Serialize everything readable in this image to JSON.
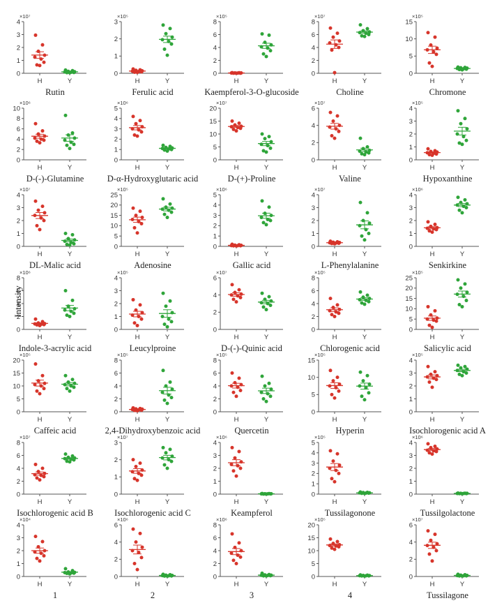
{
  "figure": {
    "ylabel": "Intensity",
    "group_labels": [
      "H",
      "Y"
    ],
    "colors": {
      "H": "#d7352b",
      "Y": "#2fa53a",
      "axis": "#555555"
    }
  },
  "chart_data": [
    {
      "type": "scatter",
      "title": "Rutin",
      "exp": "×10⁷",
      "ylim": [
        0,
        4
      ],
      "yticks": [
        0,
        1,
        2,
        3,
        4
      ],
      "H": [
        2.95,
        2.2,
        1.7,
        1.4,
        1.25,
        1.1,
        0.85,
        0.65,
        0.6
      ],
      "Y": [
        0.25,
        0.2,
        0.15,
        0.12,
        0.1,
        0.08,
        0.06,
        0.05,
        0.04
      ]
    },
    {
      "type": "scatter",
      "title": "Ferulic acid",
      "exp": "×10⁵",
      "ylim": [
        0,
        3
      ],
      "yticks": [
        0,
        1,
        2,
        3
      ],
      "H": [
        0.25,
        0.2,
        0.17,
        0.14,
        0.12,
        0.1,
        0.08,
        0.06,
        0.05
      ],
      "Y": [
        2.8,
        2.6,
        2.3,
        2.1,
        1.95,
        1.85,
        1.7,
        1.4,
        1.05
      ]
    },
    {
      "type": "scatter",
      "title": "Kaempferol-3-O-glucoside",
      "exp": "×10⁵",
      "ylim": [
        0,
        8
      ],
      "yticks": [
        0,
        2,
        4,
        6,
        8
      ],
      "H": [
        0.1,
        0.08,
        0.06,
        0.05,
        0.04,
        0.03,
        0.02,
        0.02,
        0.01
      ],
      "Y": [
        6.1,
        5.9,
        4.8,
        4.4,
        4.1,
        3.9,
        3.5,
        3.0,
        2.6
      ]
    },
    {
      "type": "scatter",
      "title": "Choline",
      "exp": "×10⁷",
      "ylim": [
        0,
        8
      ],
      "yticks": [
        0,
        2,
        4,
        6,
        8
      ],
      "H": [
        7.0,
        6.2,
        5.6,
        5.0,
        4.7,
        4.4,
        4.0,
        3.6,
        0.1
      ],
      "Y": [
        7.5,
        6.9,
        6.6,
        6.4,
        6.3,
        6.2,
        6.0,
        5.8,
        5.7
      ]
    },
    {
      "type": "scatter",
      "title": "Chromone",
      "exp": "×10⁵",
      "ylim": [
        0,
        15
      ],
      "yticks": [
        0,
        5,
        10,
        15
      ],
      "H": [
        11.8,
        10.5,
        8.2,
        7.3,
        6.8,
        6.2,
        5.5,
        3.0,
        2.0
      ],
      "Y": [
        1.8,
        1.7,
        1.6,
        1.5,
        1.4,
        1.3,
        1.2,
        1.1,
        1.0
      ]
    },
    {
      "type": "scatter",
      "title": "D-(-)-Glutamine",
      "exp": "×10⁶",
      "ylim": [
        0,
        10
      ],
      "yticks": [
        0,
        2,
        4,
        6,
        8,
        10
      ],
      "H": [
        7.0,
        5.6,
        5.0,
        4.6,
        4.2,
        4.0,
        3.8,
        3.6,
        3.3
      ],
      "Y": [
        8.6,
        5.2,
        4.8,
        4.2,
        3.8,
        3.4,
        3.0,
        2.8,
        2.2
      ]
    },
    {
      "type": "scatter",
      "title": "D-α-Hydroxyglutaric acid",
      "exp": "×10⁶",
      "ylim": [
        0,
        5
      ],
      "yticks": [
        0,
        1,
        2,
        3,
        4,
        5
      ],
      "H": [
        4.2,
        3.8,
        3.5,
        3.2,
        3.0,
        2.9,
        2.7,
        2.4,
        2.3
      ],
      "Y": [
        1.4,
        1.3,
        1.2,
        1.15,
        1.1,
        1.05,
        1.0,
        0.95,
        0.85
      ]
    },
    {
      "type": "scatter",
      "title": "D-(+)-Proline",
      "exp": "×10⁷",
      "ylim": [
        0,
        20
      ],
      "yticks": [
        0,
        5,
        10,
        15,
        20
      ],
      "H": [
        15.0,
        14.2,
        13.5,
        13.0,
        12.8,
        12.5,
        12.2,
        11.8,
        11.2
      ],
      "Y": [
        10.0,
        9.0,
        8.2,
        7.0,
        6.0,
        5.5,
        4.5,
        3.5,
        3.0
      ]
    },
    {
      "type": "scatter",
      "title": "Valine",
      "exp": "×10⁷",
      "ylim": [
        0,
        6
      ],
      "yticks": [
        0,
        2,
        4,
        6
      ],
      "H": [
        5.5,
        5.1,
        4.5,
        4.0,
        3.8,
        3.6,
        3.3,
        2.8,
        2.5
      ],
      "Y": [
        2.5,
        1.5,
        1.3,
        1.1,
        1.0,
        0.9,
        0.8,
        0.7,
        0.6
      ]
    },
    {
      "type": "scatter",
      "title": "Hypoxanthine",
      "exp": "×10⁵",
      "ylim": [
        0,
        4
      ],
      "yticks": [
        0,
        1,
        2,
        3,
        4
      ],
      "H": [
        0.85,
        0.7,
        0.65,
        0.6,
        0.55,
        0.5,
        0.45,
        0.4,
        0.35
      ],
      "Y": [
        3.8,
        3.2,
        2.8,
        2.4,
        2.0,
        1.8,
        1.5,
        1.3,
        1.2
      ]
    },
    {
      "type": "scatter",
      "title": "DL-Malic acid",
      "exp": "×10⁷",
      "ylim": [
        0,
        4
      ],
      "yticks": [
        0,
        1,
        2,
        3,
        4
      ],
      "H": [
        3.5,
        3.1,
        2.8,
        2.6,
        2.4,
        2.2,
        2.0,
        1.6,
        1.3
      ],
      "Y": [
        1.0,
        0.9,
        0.6,
        0.5,
        0.4,
        0.3,
        0.2,
        0.15,
        0.1
      ]
    },
    {
      "type": "scatter",
      "title": "Adenosine",
      "exp": "×10⁵",
      "ylim": [
        0,
        25
      ],
      "yticks": [
        0,
        5,
        10,
        15,
        20,
        25
      ],
      "H": [
        18.5,
        17.0,
        15.0,
        14.0,
        13.0,
        12.0,
        11.0,
        9.0,
        6.5
      ],
      "Y": [
        23.0,
        20.5,
        19.0,
        18.5,
        18.0,
        17.5,
        16.5,
        15.5,
        14.0
      ]
    },
    {
      "type": "scatter",
      "title": "Gallic acid",
      "exp": "×10⁶",
      "ylim": [
        0,
        5
      ],
      "yticks": [
        0,
        1,
        2,
        3,
        4,
        5
      ],
      "H": [
        0.2,
        0.15,
        0.12,
        0.1,
        0.08,
        0.07,
        0.06,
        0.05,
        0.04
      ],
      "Y": [
        4.4,
        3.8,
        3.2,
        3.0,
        2.8,
        2.6,
        2.5,
        2.3,
        2.1
      ]
    },
    {
      "type": "scatter",
      "title": "L-Phenylalanine",
      "exp": "×10⁷",
      "ylim": [
        0,
        4
      ],
      "yticks": [
        0,
        1,
        2,
        3,
        4
      ],
      "H": [
        0.4,
        0.35,
        0.32,
        0.3,
        0.28,
        0.26,
        0.24,
        0.22,
        0.2
      ],
      "Y": [
        3.4,
        2.6,
        2.0,
        1.8,
        1.6,
        1.3,
        1.0,
        0.8,
        0.5
      ]
    },
    {
      "type": "scatter",
      "title": "Senkirkine",
      "exp": "×10⁶",
      "ylim": [
        0,
        4
      ],
      "yticks": [
        0,
        1,
        2,
        3,
        4
      ],
      "H": [
        1.9,
        1.7,
        1.55,
        1.45,
        1.4,
        1.35,
        1.3,
        1.2,
        1.1
      ],
      "Y": [
        3.8,
        3.6,
        3.4,
        3.3,
        3.2,
        3.1,
        3.0,
        2.8,
        2.6
      ]
    },
    {
      "type": "scatter",
      "title": "Indole-3-acrylic acid",
      "exp": "×10⁶",
      "ylim": [
        0,
        8
      ],
      "yticks": [
        0,
        2,
        4,
        6,
        8
      ],
      "H": [
        1.6,
        1.2,
        1.0,
        0.9,
        0.85,
        0.8,
        0.75,
        0.7,
        0.6
      ],
      "Y": [
        6.0,
        4.5,
        3.6,
        3.2,
        3.0,
        2.8,
        2.5,
        2.2,
        2.0
      ]
    },
    {
      "type": "scatter",
      "title": "Leucylproine",
      "exp": "×10⁵",
      "ylim": [
        0,
        4
      ],
      "yticks": [
        0,
        1,
        2,
        3,
        4
      ],
      "H": [
        2.3,
        1.9,
        1.5,
        1.3,
        1.1,
        1.0,
        0.8,
        0.5,
        0.3
      ],
      "Y": [
        2.8,
        2.2,
        1.8,
        1.3,
        1.0,
        0.8,
        0.6,
        0.4,
        0.2
      ]
    },
    {
      "type": "scatter",
      "title": "D-(-)-Quinic acid",
      "exp": "×10⁷",
      "ylim": [
        0,
        6
      ],
      "yticks": [
        0,
        2,
        4,
        6
      ],
      "H": [
        5.2,
        4.6,
        4.3,
        4.1,
        4.0,
        3.9,
        3.7,
        3.5,
        3.2
      ],
      "Y": [
        4.2,
        3.8,
        3.5,
        3.3,
        3.1,
        3.0,
        2.8,
        2.6,
        2.3
      ]
    },
    {
      "type": "scatter",
      "title": "Chlorogenic acid",
      "exp": "×10⁵",
      "ylim": [
        0,
        8
      ],
      "yticks": [
        0,
        2,
        4,
        6,
        8
      ],
      "H": [
        4.8,
        3.8,
        3.4,
        3.1,
        2.9,
        2.7,
        2.5,
        2.3,
        2.0
      ],
      "Y": [
        5.8,
        5.3,
        5.0,
        4.8,
        4.6,
        4.5,
        4.3,
        4.1,
        3.9
      ]
    },
    {
      "type": "scatter",
      "title": "Salicylic acid",
      "exp": "×10⁵",
      "ylim": [
        0,
        25
      ],
      "yticks": [
        0,
        5,
        10,
        15,
        20,
        25
      ],
      "H": [
        11.0,
        9.0,
        7.0,
        5.5,
        5.0,
        4.5,
        4.0,
        2.0,
        1.0
      ],
      "Y": [
        24.0,
        22.0,
        20.0,
        18.0,
        17.0,
        16.0,
        14.0,
        12.0,
        11.0
      ]
    },
    {
      "type": "scatter",
      "title": "Caffeic acid",
      "exp": "×10⁵",
      "ylim": [
        0,
        20
      ],
      "yticks": [
        0,
        5,
        10,
        15,
        20
      ],
      "H": [
        18.5,
        14.0,
        12.0,
        11.0,
        10.5,
        10.0,
        9.0,
        8.0,
        7.0
      ],
      "Y": [
        14.0,
        12.5,
        11.5,
        11.0,
        10.5,
        10.0,
        9.5,
        9.0,
        8.0
      ]
    },
    {
      "type": "scatter",
      "title": "2,4-Dihydroxybenzoic acid",
      "exp": "×10⁵",
      "ylim": [
        0,
        8
      ],
      "yticks": [
        0,
        2,
        4,
        6,
        8
      ],
      "H": [
        0.6,
        0.5,
        0.45,
        0.4,
        0.35,
        0.3,
        0.25,
        0.2,
        0.15
      ],
      "Y": [
        6.4,
        4.6,
        4.0,
        3.5,
        3.0,
        2.6,
        2.2,
        1.8,
        1.3
      ]
    },
    {
      "type": "scatter",
      "title": "Quercetin",
      "exp": "×10⁵",
      "ylim": [
        0,
        8
      ],
      "yticks": [
        0,
        2,
        4,
        6,
        8
      ],
      "H": [
        6.0,
        5.2,
        4.5,
        4.2,
        4.0,
        3.8,
        3.3,
        3.0,
        2.4
      ],
      "Y": [
        5.5,
        4.4,
        4.0,
        3.5,
        3.0,
        2.8,
        2.4,
        2.0,
        1.6
      ]
    },
    {
      "type": "scatter",
      "title": "Hyperin",
      "exp": "×10⁵",
      "ylim": [
        0,
        15
      ],
      "yticks": [
        0,
        5,
        10,
        15
      ],
      "H": [
        12.0,
        10.0,
        9.0,
        8.0,
        7.5,
        7.0,
        6.0,
        5.0,
        4.0
      ],
      "Y": [
        11.5,
        10.5,
        9.0,
        8.0,
        7.5,
        7.0,
        5.5,
        4.5,
        3.5
      ]
    },
    {
      "type": "scatter",
      "title": "Isochlorogenic acid A",
      "exp": "×10⁵",
      "ylim": [
        0,
        4
      ],
      "yticks": [
        0,
        1,
        2,
        3,
        4
      ],
      "H": [
        3.5,
        3.1,
        2.9,
        2.8,
        2.7,
        2.6,
        2.5,
        2.3,
        1.9
      ],
      "Y": [
        3.6,
        3.5,
        3.4,
        3.3,
        3.2,
        3.1,
        3.0,
        2.9,
        2.8
      ]
    },
    {
      "type": "scatter",
      "title": "Isochlorogenic acid B",
      "exp": "×10⁷",
      "ylim": [
        0,
        8
      ],
      "yticks": [
        0,
        2,
        4,
        6,
        8
      ],
      "H": [
        4.6,
        4.0,
        3.5,
        3.2,
        3.0,
        2.9,
        2.7,
        2.5,
        2.2
      ],
      "Y": [
        6.2,
        5.9,
        5.7,
        5.6,
        5.5,
        5.4,
        5.3,
        5.1,
        5.0
      ]
    },
    {
      "type": "scatter",
      "title": "Isochlorogenic acid C",
      "exp": "×10⁷",
      "ylim": [
        0,
        3
      ],
      "yticks": [
        0,
        1,
        2,
        3
      ],
      "H": [
        2.0,
        1.8,
        1.6,
        1.4,
        1.3,
        1.2,
        1.1,
        0.9,
        0.8
      ],
      "Y": [
        2.7,
        2.6,
        2.4,
        2.2,
        2.1,
        2.0,
        1.9,
        1.7,
        1.5
      ]
    },
    {
      "type": "scatter",
      "title": "Keampferol",
      "exp": "×10⁶",
      "ylim": [
        0,
        4
      ],
      "yticks": [
        0,
        1,
        2,
        3,
        4
      ],
      "H": [
        3.6,
        3.3,
        2.8,
        2.5,
        2.3,
        2.2,
        2.0,
        1.8,
        1.4
      ],
      "Y": [
        0.05,
        0.04,
        0.03,
        0.03,
        0.02,
        0.02,
        0.02,
        0.01,
        0.01
      ]
    },
    {
      "type": "scatter",
      "title": "Tussilagonone",
      "exp": "×10⁵",
      "ylim": [
        0,
        5
      ],
      "yticks": [
        0,
        1,
        2,
        3,
        4,
        5
      ],
      "H": [
        4.2,
        3.9,
        3.2,
        2.8,
        2.5,
        2.3,
        2.0,
        1.5,
        1.2
      ],
      "Y": [
        0.2,
        0.17,
        0.15,
        0.13,
        0.12,
        0.1,
        0.09,
        0.08,
        0.06
      ]
    },
    {
      "type": "scatter",
      "title": "Tussilgolactone",
      "exp": "×10⁶",
      "ylim": [
        0,
        4
      ],
      "yticks": [
        0,
        1,
        2,
        3,
        4
      ],
      "H": [
        3.9,
        3.7,
        3.6,
        3.5,
        3.4,
        3.35,
        3.3,
        3.2,
        3.1
      ],
      "Y": [
        0.08,
        0.07,
        0.06,
        0.06,
        0.05,
        0.05,
        0.04,
        0.04,
        0.03
      ]
    },
    {
      "type": "scatter",
      "title": "1",
      "exp": "×10⁴",
      "ylim": [
        0,
        4
      ],
      "yticks": [
        0,
        1,
        2,
        3,
        4
      ],
      "H": [
        3.1,
        2.7,
        2.3,
        2.0,
        1.9,
        1.8,
        1.6,
        1.4,
        1.2
      ],
      "Y": [
        0.6,
        0.45,
        0.35,
        0.32,
        0.3,
        0.28,
        0.26,
        0.24,
        0.2
      ]
    },
    {
      "type": "scatter",
      "title": "2",
      "exp": "×10⁶",
      "ylim": [
        0,
        6
      ],
      "yticks": [
        0,
        2,
        4,
        6
      ],
      "H": [
        5.5,
        5.0,
        4.0,
        3.4,
        3.0,
        2.8,
        2.2,
        1.5,
        0.8
      ],
      "Y": [
        0.25,
        0.2,
        0.15,
        0.12,
        0.1,
        0.08,
        0.06,
        0.05,
        0.04
      ]
    },
    {
      "type": "scatter",
      "title": "3",
      "exp": "×10⁶",
      "ylim": [
        0,
        8
      ],
      "yticks": [
        0,
        2,
        4,
        6,
        8
      ],
      "H": [
        6.6,
        5.2,
        4.5,
        4.0,
        3.6,
        3.3,
        3.0,
        2.5,
        2.0
      ],
      "Y": [
        0.5,
        0.3,
        0.25,
        0.2,
        0.18,
        0.15,
        0.12,
        0.1,
        0.08
      ]
    },
    {
      "type": "scatter",
      "title": "4",
      "exp": "×10⁵",
      "ylim": [
        0,
        20
      ],
      "yticks": [
        0,
        5,
        10,
        15,
        20
      ],
      "H": [
        14.5,
        13.5,
        12.8,
        12.3,
        12.0,
        11.8,
        11.5,
        11.0,
        10.5
      ],
      "Y": [
        0.6,
        0.5,
        0.4,
        0.35,
        0.3,
        0.28,
        0.25,
        0.2,
        0.15
      ]
    },
    {
      "type": "scatter",
      "title": "Tussilagone",
      "exp": "×10⁷",
      "ylim": [
        0,
        6
      ],
      "yticks": [
        0,
        2,
        4,
        6
      ],
      "H": [
        5.3,
        4.9,
        4.2,
        3.8,
        3.6,
        3.4,
        3.0,
        2.6,
        1.8
      ],
      "Y": [
        0.25,
        0.2,
        0.15,
        0.12,
        0.1,
        0.08,
        0.07,
        0.06,
        0.05
      ]
    }
  ]
}
